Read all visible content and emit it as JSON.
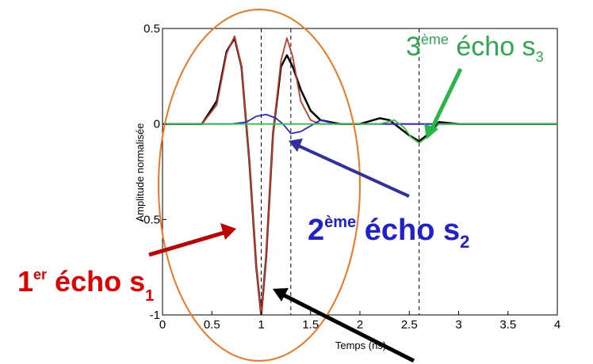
{
  "chart_data": {
    "type": "line",
    "title": "",
    "xlabel": "Temps (ns)",
    "ylabel": "Amplitude normalisée",
    "xlim": [
      0,
      4
    ],
    "ylim": [
      -1,
      0.5
    ],
    "grid": false,
    "x_ticks": [
      "0",
      "0.5",
      "1",
      "1.5",
      "2",
      "2.5",
      "3",
      "3.5",
      "4"
    ],
    "y_ticks": [
      "0.5",
      "0",
      "-0.5",
      "-1"
    ],
    "dashed_lines_x": [
      1.0,
      1.3,
      2.6
    ],
    "series": [
      {
        "color": "#000000",
        "x": [
          0,
          0.4,
          0.55,
          0.65,
          0.73,
          0.8,
          0.88,
          0.95,
          1.0,
          1.05,
          1.12,
          1.2,
          1.26,
          1.32,
          1.4,
          1.5,
          1.6,
          1.8,
          2.0,
          2.2,
          2.3,
          2.4,
          2.5,
          2.6,
          2.7,
          2.8,
          3.0,
          3.3,
          3.6,
          4.0
        ],
        "y": [
          0,
          0.0,
          0.12,
          0.38,
          0.45,
          0.3,
          -0.2,
          -0.75,
          -1.0,
          -0.7,
          -0.05,
          0.3,
          0.36,
          0.3,
          0.18,
          0.07,
          0.02,
          0.0,
          0.0,
          0.03,
          0.02,
          -0.02,
          -0.06,
          -0.09,
          -0.05,
          0.01,
          0.0,
          0.0,
          0.0,
          0.0
        ]
      },
      {
        "color": "#c0392b",
        "x": [
          0,
          0.4,
          0.55,
          0.65,
          0.73,
          0.8,
          0.88,
          0.95,
          1.0,
          1.05,
          1.12,
          1.2,
          1.26,
          1.32,
          1.4,
          1.5,
          1.6,
          1.8,
          4.0
        ],
        "y": [
          0,
          0.0,
          0.1,
          0.37,
          0.46,
          0.3,
          -0.2,
          -0.75,
          -1.0,
          -0.7,
          -0.05,
          0.33,
          0.45,
          0.35,
          0.12,
          0.02,
          0.0,
          0.0,
          0.0
        ]
      },
      {
        "color": "#2a2ad0",
        "x": [
          0,
          0.7,
          0.85,
          0.95,
          1.05,
          1.15,
          1.22,
          1.3,
          1.4,
          1.5,
          1.6,
          1.75,
          4.0
        ],
        "y": [
          0,
          0.0,
          0.01,
          0.04,
          0.05,
          0.03,
          0.0,
          -0.05,
          -0.04,
          -0.01,
          0.02,
          0.0,
          0.0
        ]
      },
      {
        "color": "#3ac04a",
        "x": [
          0,
          2.2,
          2.35,
          2.45,
          2.52,
          2.6,
          2.7,
          2.8,
          2.9,
          3.0,
          4.0
        ],
        "y": [
          0,
          0.0,
          0.02,
          -0.02,
          -0.07,
          -0.1,
          -0.06,
          0.0,
          0.0,
          0.0,
          0.0
        ]
      }
    ]
  },
  "annotations": {
    "echo1": {
      "main": "1",
      "sup": "er",
      "text": " écho s",
      "sub": "1",
      "color": "#e00000"
    },
    "echo2": {
      "main": "2",
      "sup": "ème",
      "text": " écho s",
      "sub": "2",
      "color": "#2020d0"
    },
    "echo3": {
      "main": "3",
      "sup": "ème",
      "text": " écho s",
      "sub": "3",
      "color": "#2da84f"
    }
  },
  "colors": {
    "ellipse": "#ee7722",
    "arrow_red": "#c00000",
    "arrow_blue": "#3030a0",
    "arrow_green": "#2db54a",
    "arrow_black": "#000000"
  }
}
